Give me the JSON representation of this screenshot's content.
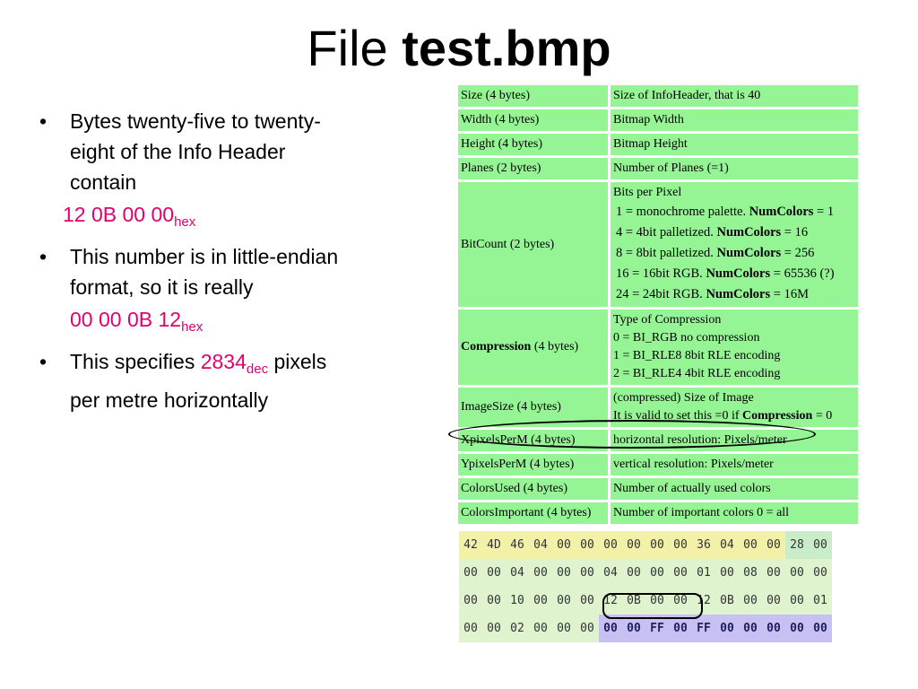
{
  "title": {
    "prefix": "File ",
    "filename": "test.bmp"
  },
  "bullets": {
    "b1_text": "Bytes  twenty-five to twenty-eight  of  the Info Header contain",
    "b1_hex_value": "12 0B 00 00",
    "b1_hex_suffix": "hex",
    "b2_text": "This number is in little-endian format, so it is really",
    "b2_hex_value": "00 00 0B 12",
    "b2_hex_suffix": "hex",
    "b3_prefix": "This specifies ",
    "b3_value": "2834",
    "b3_suffix": "dec",
    "b3_rest": "pixels per metre horizontally",
    "marker": "•"
  },
  "info_table": {
    "rows": [
      {
        "field": "Size (4 bytes)",
        "desc": "Size of InfoHeader, that is 40"
      },
      {
        "field": "Width (4 bytes)",
        "desc": "Bitmap Width"
      },
      {
        "field": "Height (4 bytes)",
        "desc": "Bitmap Height"
      },
      {
        "field": "Planes (2 bytes)",
        "desc": "Number of Planes (=1)"
      },
      {
        "field": "BitCount (2 bytes)",
        "desc_title": "Bits per Pixel",
        "desc_lines": [
          {
            "pre": "1 = monochrome palette. ",
            "bold": "NumColors",
            "post": " = 1"
          },
          {
            "pre": "4 = 4bit palletized. ",
            "bold": "NumColors",
            "post": " = 16"
          },
          {
            "pre": "8 = 8bit palletized. ",
            "bold": "NumColors",
            "post": " = 256"
          },
          {
            "pre": "16 = 16bit RGB. ",
            "bold": "NumColors",
            "post": " = 65536 (?)"
          },
          {
            "pre": "24 = 24bit RGB. ",
            "bold": "NumColors",
            "post": " = 16M"
          }
        ]
      },
      {
        "field_bold": "Compression",
        "field_rest": " (4 bytes)",
        "desc_lines_plain": [
          "Type of Compression",
          "0 = BI_RGB no compression",
          "1 = BI_RLE8 8bit RLE encoding",
          "2 = BI_RLE4 4bit RLE encoding"
        ]
      },
      {
        "field": "ImageSize (4 bytes)",
        "desc_l1": "(compressed) Size of Image",
        "desc_l2_pre": "It is valid to set this =0 if ",
        "desc_l2_bold": "Compression",
        "desc_l2_post": " = 0"
      },
      {
        "field": "XpixelsPerM (4 bytes)",
        "desc": "horizontal resolution: Pixels/meter"
      },
      {
        "field": "YpixelsPerM (4 bytes)",
        "desc": "vertical resolution: Pixels/meter"
      },
      {
        "field": "ColorsUsed (4 bytes)",
        "desc": "Number of actually used colors"
      },
      {
        "field": "ColorsImportant (4 bytes)",
        "desc": "Number of important colors 0 = all"
      }
    ]
  },
  "hex_dump": {
    "rows": [
      [
        "42",
        "4D",
        "46",
        "04",
        "00",
        "00",
        "00",
        "00",
        "00",
        "00",
        "36",
        "04",
        "00",
        "00",
        "28",
        "00"
      ],
      [
        "00",
        "00",
        "04",
        "00",
        "00",
        "00",
        "04",
        "00",
        "00",
        "00",
        "01",
        "00",
        "08",
        "00",
        "00",
        "00"
      ],
      [
        "00",
        "00",
        "10",
        "00",
        "00",
        "00",
        "12",
        "0B",
        "00",
        "00",
        "12",
        "0B",
        "00",
        "00",
        "00",
        "01"
      ],
      [
        "00",
        "00",
        "02",
        "00",
        "00",
        "00",
        "00",
        "00",
        "FF",
        "00",
        "FF",
        "00",
        "00",
        "00",
        "00",
        "00"
      ]
    ]
  },
  "colors": {
    "accent": "#e0006e",
    "table_green": "#95f595",
    "hex_yellow": "#f3f0a8",
    "hex_green": "#dff3cf",
    "hex_purple": "#c7c0f2"
  }
}
